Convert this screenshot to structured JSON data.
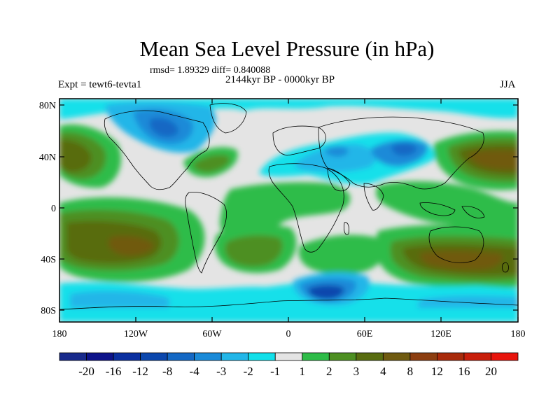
{
  "title": "Mean Sea Level Pressure (in hPa)",
  "stats": "rmsd= 1.89329  diff= 0.840088",
  "period": "2144kyr BP - 0000kyr BP",
  "experiment": "Expt = tewt6-tevta1",
  "season": "JJA",
  "y_axis_labels": [
    "80N",
    "40N",
    "0",
    "40S",
    "80S"
  ],
  "x_axis_labels": [
    "180",
    "120W",
    "60W",
    "0",
    "60E",
    "120E",
    "180"
  ],
  "colorbar": {
    "labels": [
      "-20",
      "-16",
      "-12",
      "-8",
      "-4",
      "-3",
      "-2",
      "-1",
      "1",
      "2",
      "3",
      "4",
      "8",
      "12",
      "16",
      "20"
    ],
    "colors": [
      "#182a8c",
      "#0d138a",
      "#0a2fa0",
      "#0b47ad",
      "#1468c4",
      "#1a8ad8",
      "#22b6e8",
      "#12e0ea",
      "#e4e4e4",
      "#2ebc48",
      "#4d8f22",
      "#586c10",
      "#6f5a10",
      "#8c3e10",
      "#a82a0a",
      "#c81e0a",
      "#e8140c"
    ]
  },
  "colors": {
    "neutral": "#e4e4e4",
    "green": "#2ebc48",
    "olive": "#4d8f22",
    "darkolive": "#586c10",
    "brown": "#6f5a10",
    "cyan": "#12e0ea",
    "lightblue": "#22b6e8",
    "blue": "#1a8ad8",
    "darkblue": "#0b47ad"
  }
}
